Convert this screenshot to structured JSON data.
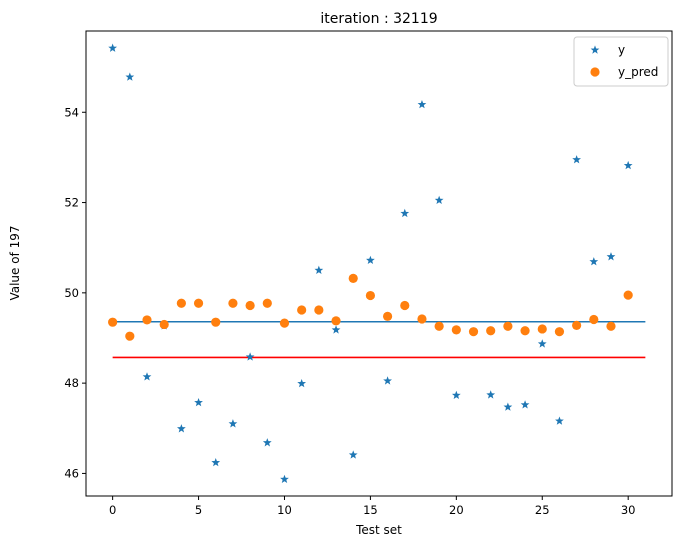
{
  "chart_data": {
    "type": "scatter",
    "title": "iteration : 32119",
    "xlabel": "Test set",
    "ylabel": "Value of 197",
    "xlim": [
      -1.55,
      32.55
    ],
    "ylim": [
      45.5,
      55.8
    ],
    "xticks": [
      0,
      5,
      10,
      15,
      20,
      25,
      30
    ],
    "yticks": [
      46,
      48,
      50,
      52,
      54
    ],
    "grid": false,
    "legend_position": "top-right",
    "series": [
      {
        "name": "y",
        "marker": "star",
        "color": "#1f77b4",
        "x": [
          0,
          1,
          2,
          3,
          4,
          5,
          6,
          7,
          8,
          9,
          10,
          11,
          12,
          13,
          14,
          15,
          16,
          17,
          18,
          19,
          20,
          21,
          22,
          23,
          24,
          25,
          26,
          27,
          28,
          29,
          30
        ],
        "y": [
          55.42,
          54.78,
          48.14,
          49.27,
          46.99,
          47.57,
          46.24,
          47.1,
          48.58,
          46.68,
          45.87,
          47.99,
          50.5,
          49.18,
          46.41,
          50.72,
          48.05,
          51.76,
          54.17,
          52.05,
          47.73,
          null,
          47.74,
          47.47,
          47.52,
          48.87,
          47.16,
          52.95,
          50.69,
          50.8,
          52.82
        ]
      },
      {
        "name": "y_pred",
        "marker": "circle",
        "color": "#ff7f0e",
        "x": [
          0,
          1,
          2,
          3,
          4,
          5,
          6,
          7,
          8,
          9,
          10,
          11,
          12,
          13,
          14,
          15,
          16,
          17,
          18,
          19,
          20,
          21,
          22,
          23,
          24,
          25,
          26,
          27,
          28,
          29,
          30
        ],
        "y": [
          49.35,
          49.04,
          49.4,
          49.3,
          49.77,
          49.77,
          49.35,
          49.77,
          49.72,
          49.77,
          49.33,
          49.62,
          49.62,
          49.38,
          50.32,
          49.94,
          49.48,
          49.72,
          49.42,
          49.26,
          49.18,
          49.14,
          49.16,
          49.26,
          49.16,
          49.2,
          49.14,
          49.28,
          49.41,
          49.26,
          49.95
        ]
      }
    ],
    "lines": [
      {
        "color": "#1f77b4",
        "x": [
          0,
          31
        ],
        "y": [
          49.36,
          49.36
        ]
      },
      {
        "color": "#ff0000",
        "x": [
          0,
          31
        ],
        "y": [
          48.57,
          48.57
        ]
      }
    ]
  }
}
